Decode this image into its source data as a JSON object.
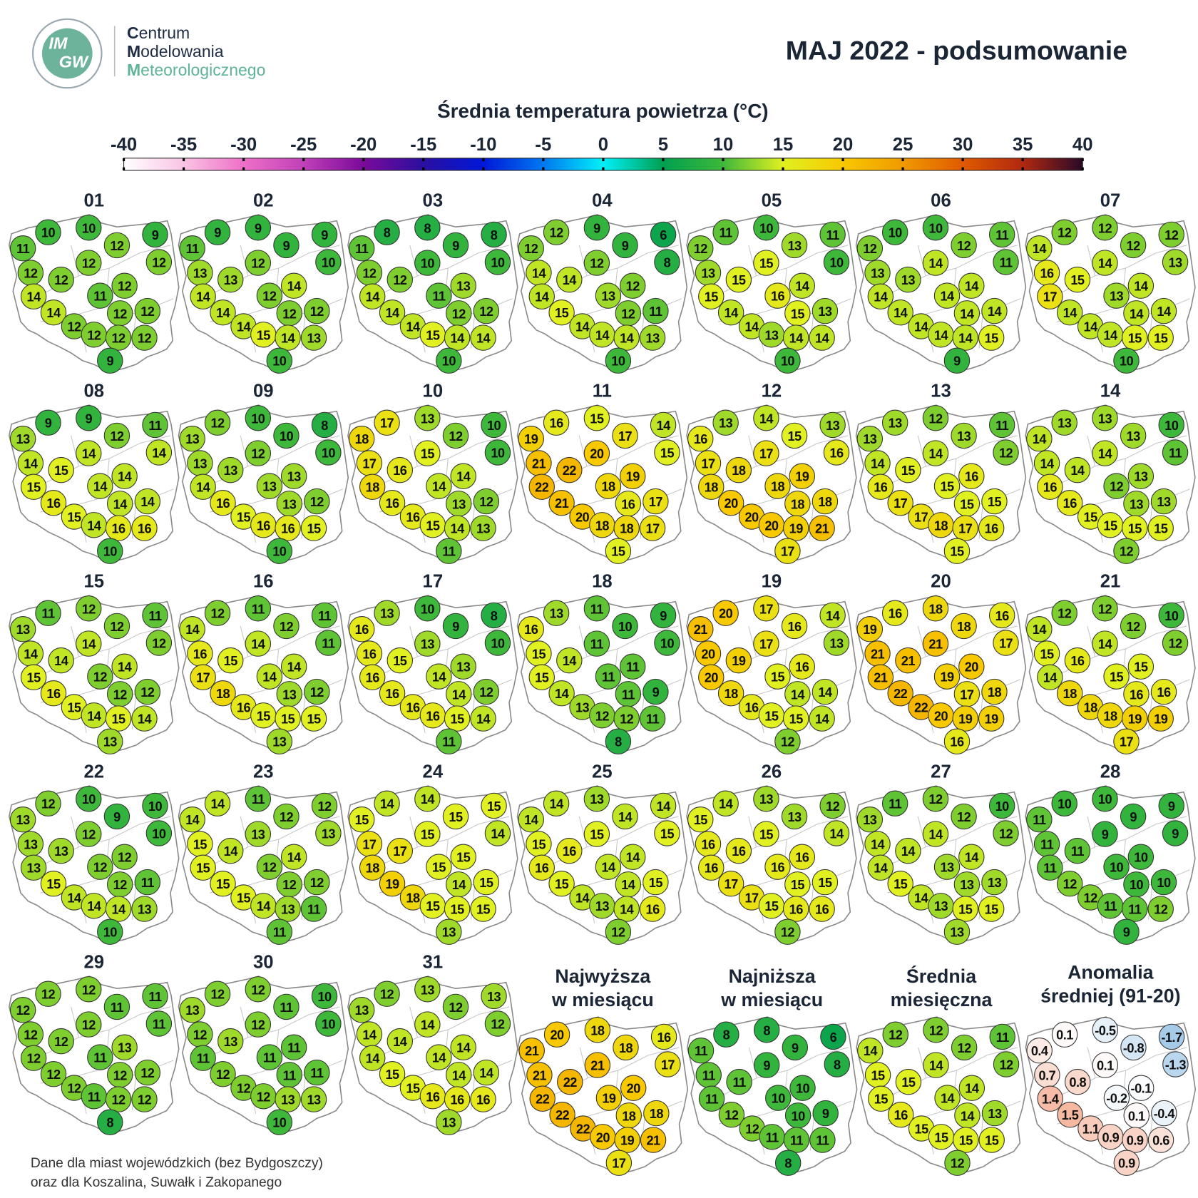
{
  "header": {
    "logo": [
      "IM",
      "GW"
    ],
    "organization": [
      "Centrum",
      "Modelowania",
      "Meteorologicznego"
    ],
    "title": "MAJ 2022 - podsumowanie"
  },
  "chart_data": {
    "type": "station-map",
    "title": "Średnia temperatura powietrza (°C)",
    "xlim": [
      -40,
      40
    ],
    "xticks": [
      -40,
      -35,
      -30,
      -25,
      -20,
      -15,
      -10,
      -5,
      0,
      5,
      10,
      15,
      20,
      25,
      30,
      35,
      40
    ],
    "colors": [
      "#ffffff",
      "#f9c4e4",
      "#ee70c8",
      "#c040b8",
      "#7a0a9a",
      "#2a0fa0",
      "#0018d8",
      "#0078f0",
      "#00f0f8",
      "#00a050",
      "#3eb83a",
      "#e0f020",
      "#f8c800",
      "#f09a00",
      "#e05a00",
      "#b02810",
      "#2a0a28"
    ],
    "maps": [
      {
        "title": "01",
        "values": [
          10,
          10,
          12,
          9,
          11,
          12,
          12,
          12,
          12,
          12,
          14,
          11,
          14,
          12,
          12,
          12,
          12,
          12,
          12,
          9
        ]
      },
      {
        "title": "02",
        "values": [
          9,
          9,
          9,
          9,
          11,
          10,
          12,
          13,
          13,
          14,
          14,
          12,
          14,
          12,
          12,
          14,
          15,
          14,
          13,
          10
        ]
      },
      {
        "title": "03",
        "values": [
          8,
          8,
          9,
          8,
          11,
          10,
          10,
          12,
          12,
          13,
          14,
          11,
          14,
          12,
          12,
          14,
          15,
          14,
          14,
          10
        ]
      },
      {
        "title": "04",
        "values": [
          12,
          9,
          9,
          6,
          12,
          8,
          12,
          14,
          14,
          12,
          14,
          13,
          15,
          12,
          11,
          14,
          14,
          14,
          13,
          10
        ]
      },
      {
        "title": "05",
        "values": [
          11,
          10,
          13,
          11,
          12,
          10,
          15,
          13,
          15,
          14,
          15,
          16,
          14,
          15,
          13,
          14,
          13,
          14,
          14,
          10
        ]
      },
      {
        "title": "06",
        "values": [
          10,
          10,
          12,
          11,
          12,
          11,
          14,
          13,
          13,
          14,
          14,
          14,
          14,
          14,
          14,
          14,
          14,
          14,
          15,
          9
        ]
      },
      {
        "title": "07",
        "values": [
          12,
          12,
          12,
          12,
          14,
          13,
          14,
          16,
          15,
          14,
          17,
          13,
          14,
          14,
          14,
          14,
          14,
          15,
          15,
          10
        ]
      },
      {
        "title": "08",
        "values": [
          9,
          9,
          12,
          11,
          13,
          14,
          14,
          14,
          15,
          14,
          15,
          14,
          16,
          14,
          14,
          15,
          14,
          16,
          16,
          10
        ]
      },
      {
        "title": "09",
        "values": [
          12,
          10,
          10,
          8,
          13,
          10,
          12,
          13,
          13,
          13,
          14,
          13,
          16,
          13,
          12,
          15,
          16,
          16,
          15,
          10
        ]
      },
      {
        "title": "10",
        "values": [
          17,
          13,
          12,
          10,
          18,
          10,
          15,
          17,
          16,
          14,
          18,
          14,
          16,
          13,
          12,
          16,
          15,
          14,
          13,
          11
        ]
      },
      {
        "title": "11",
        "values": [
          16,
          15,
          17,
          14,
          19,
          15,
          20,
          21,
          22,
          19,
          22,
          18,
          21,
          16,
          17,
          20,
          18,
          18,
          17,
          15
        ]
      },
      {
        "title": "12",
        "values": [
          13,
          14,
          15,
          13,
          16,
          16,
          17,
          17,
          18,
          19,
          18,
          18,
          20,
          18,
          18,
          20,
          20,
          19,
          21,
          17
        ]
      },
      {
        "title": "13",
        "values": [
          13,
          12,
          13,
          11,
          13,
          12,
          14,
          14,
          15,
          16,
          16,
          15,
          17,
          15,
          15,
          17,
          18,
          17,
          16,
          15
        ]
      },
      {
        "title": "14",
        "values": [
          13,
          13,
          13,
          10,
          14,
          11,
          14,
          14,
          14,
          13,
          16,
          12,
          16,
          13,
          13,
          15,
          15,
          15,
          15,
          12
        ]
      },
      {
        "title": "15",
        "values": [
          11,
          12,
          12,
          11,
          13,
          12,
          14,
          14,
          14,
          14,
          15,
          12,
          16,
          12,
          12,
          15,
          14,
          15,
          14,
          13
        ]
      },
      {
        "title": "16",
        "values": [
          12,
          11,
          12,
          11,
          14,
          11,
          14,
          16,
          15,
          14,
          17,
          14,
          18,
          13,
          12,
          16,
          15,
          15,
          15,
          13
        ]
      },
      {
        "title": "17",
        "values": [
          13,
          10,
          9,
          8,
          16,
          10,
          13,
          16,
          15,
          13,
          16,
          14,
          16,
          14,
          12,
          16,
          16,
          15,
          14,
          11
        ]
      },
      {
        "title": "18",
        "values": [
          13,
          11,
          10,
          9,
          16,
          10,
          11,
          15,
          14,
          11,
          15,
          11,
          14,
          11,
          9,
          13,
          12,
          12,
          11,
          8
        ]
      },
      {
        "title": "19",
        "values": [
          20,
          17,
          16,
          14,
          21,
          13,
          17,
          20,
          19,
          16,
          20,
          15,
          18,
          14,
          14,
          16,
          15,
          15,
          14,
          12
        ]
      },
      {
        "title": "20",
        "values": [
          16,
          18,
          18,
          16,
          19,
          17,
          21,
          21,
          21,
          20,
          21,
          19,
          22,
          17,
          18,
          22,
          20,
          19,
          19,
          16
        ]
      },
      {
        "title": "21",
        "values": [
          12,
          12,
          12,
          10,
          14,
          12,
          14,
          15,
          16,
          15,
          14,
          15,
          18,
          16,
          16,
          18,
          18,
          19,
          19,
          17
        ]
      },
      {
        "title": "22",
        "values": [
          12,
          10,
          9,
          10,
          13,
          10,
          12,
          13,
          13,
          12,
          13,
          12,
          15,
          12,
          11,
          14,
          14,
          14,
          13,
          10
        ]
      },
      {
        "title": "23",
        "values": [
          14,
          11,
          12,
          12,
          14,
          13,
          13,
          15,
          14,
          14,
          15,
          12,
          15,
          12,
          12,
          15,
          14,
          13,
          11,
          11
        ]
      },
      {
        "title": "24",
        "values": [
          14,
          14,
          15,
          15,
          15,
          14,
          15,
          17,
          17,
          15,
          18,
          15,
          19,
          14,
          15,
          18,
          15,
          15,
          15,
          13
        ]
      },
      {
        "title": "25",
        "values": [
          14,
          13,
          14,
          14,
          14,
          15,
          15,
          15,
          16,
          14,
          16,
          14,
          15,
          14,
          15,
          14,
          13,
          14,
          16,
          12
        ]
      },
      {
        "title": "26",
        "values": [
          14,
          13,
          13,
          12,
          15,
          14,
          15,
          16,
          16,
          16,
          16,
          16,
          17,
          15,
          15,
          17,
          15,
          16,
          16,
          12
        ]
      },
      {
        "title": "27",
        "values": [
          11,
          12,
          12,
          10,
          13,
          12,
          14,
          14,
          14,
          14,
          14,
          13,
          15,
          13,
          13,
          14,
          13,
          15,
          15,
          13
        ]
      },
      {
        "title": "28",
        "values": [
          10,
          10,
          9,
          9,
          11,
          9,
          9,
          11,
          11,
          10,
          11,
          10,
          12,
          10,
          10,
          12,
          11,
          11,
          12,
          9
        ]
      },
      {
        "title": "29",
        "values": [
          12,
          12,
          11,
          11,
          12,
          11,
          12,
          12,
          12,
          13,
          12,
          11,
          12,
          12,
          12,
          12,
          11,
          12,
          12,
          8
        ]
      },
      {
        "title": "30",
        "values": [
          12,
          12,
          11,
          10,
          13,
          10,
          12,
          12,
          13,
          11,
          11,
          11,
          12,
          11,
          11,
          12,
          12,
          13,
          13,
          10
        ]
      },
      {
        "title": "31",
        "values": [
          12,
          13,
          12,
          13,
          13,
          12,
          14,
          14,
          14,
          14,
          14,
          14,
          15,
          14,
          14,
          15,
          16,
          16,
          16,
          13
        ]
      }
    ],
    "summary": [
      {
        "title": [
          "Najwyższa",
          "w miesiącu"
        ],
        "values": [
          20,
          18,
          18,
          16,
          21,
          17,
          21,
          21,
          22,
          20,
          22,
          19,
          22,
          18,
          18,
          22,
          20,
          19,
          21,
          17
        ]
      },
      {
        "title": [
          "Najniższa",
          "w miesiącu"
        ],
        "values": [
          8,
          8,
          9,
          6,
          11,
          8,
          9,
          11,
          11,
          10,
          11,
          10,
          12,
          10,
          9,
          12,
          11,
          11,
          11,
          8
        ]
      },
      {
        "title": [
          "Średnia",
          "miesięczna"
        ],
        "values": [
          12,
          12,
          12,
          11,
          14,
          12,
          14,
          15,
          15,
          14,
          15,
          14,
          16,
          14,
          13,
          15,
          15,
          15,
          15,
          12
        ]
      },
      {
        "title": [
          "Anomalia",
          "średniej (91-20)"
        ],
        "values": [
          0.1,
          -0.5,
          -0.8,
          -1.7,
          0.4,
          -1.3,
          0.1,
          0.7,
          0.8,
          -0.1,
          1.4,
          -0.2,
          1.5,
          0.1,
          -0.4,
          1.1,
          0.9,
          0.9,
          0.6,
          0.9
        ],
        "colors": [
          "#a6cbe8",
          "#ffffff",
          "#f4ae94"
        ]
      }
    ]
  },
  "footnote": [
    "Dane dla miast wojewódzkich (bez Bydgoszczy)",
    "oraz dla Koszalina, Suwałk i Zakopanego"
  ]
}
